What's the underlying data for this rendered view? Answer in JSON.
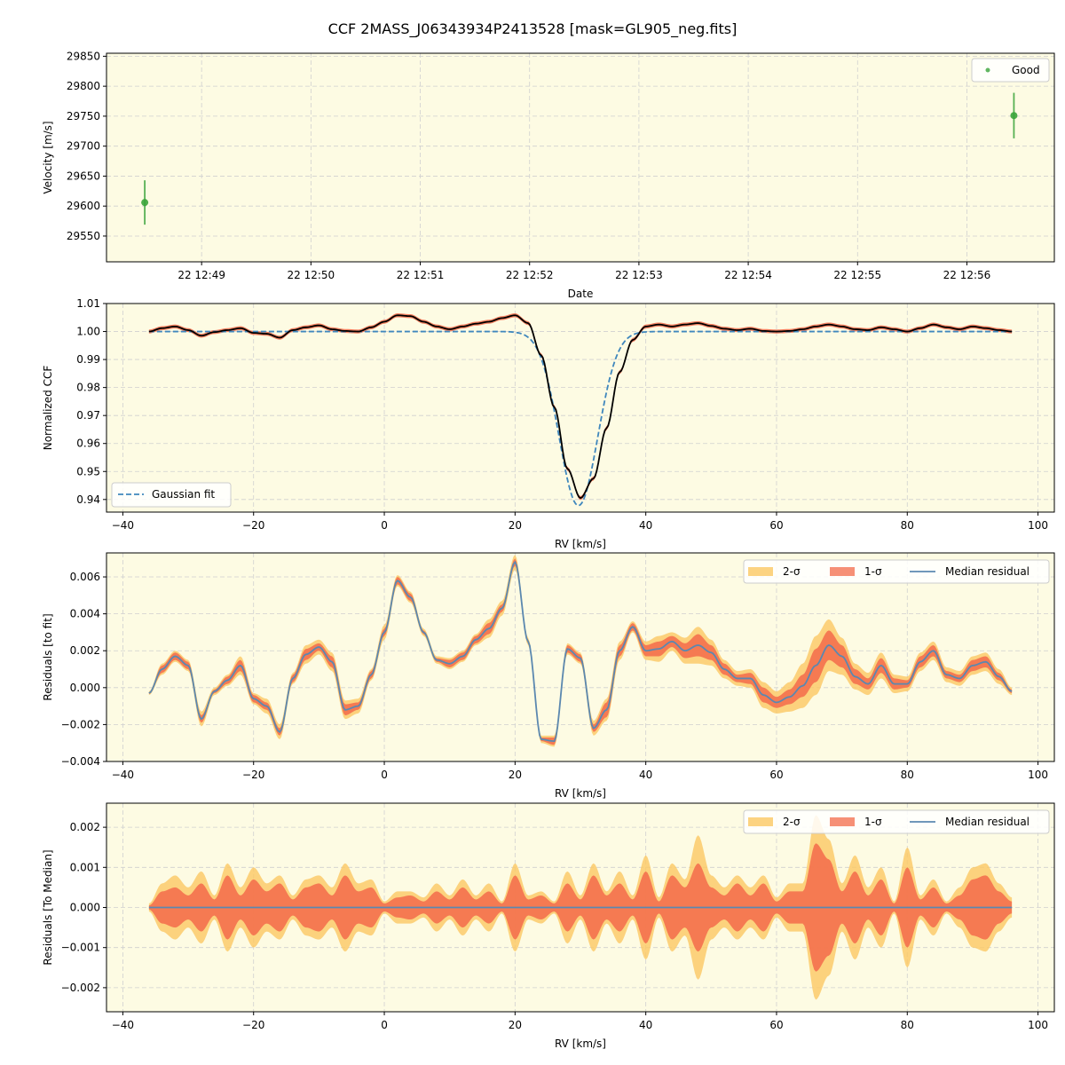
{
  "figure": {
    "title": "CCF 2MASS_J06343934P2413528 [mask=GL905_neg.fits]"
  },
  "style": {
    "plot_background": "#fdfbe3",
    "grid_color": "#d0d0d0",
    "good_color": "#3aa43a",
    "ccf_color": "#000000",
    "fit_color": "#3f87bd",
    "band2_color": "#fbc863",
    "band1_color": "#f36b4a",
    "median_color": "#5b88b0"
  },
  "chart_data": [
    {
      "type": "scatter",
      "xlabel": "Date",
      "ylabel": "Velocity [m/s]",
      "xtick_labels": [
        "22 12:49",
        "22 12:50",
        "22 12:51",
        "22 12:52",
        "22 12:53",
        "22 12:54",
        "22 12:55",
        "22 12:56"
      ],
      "xtick_minutes": [
        49,
        50,
        51,
        52,
        53,
        54,
        55,
        56
      ],
      "xlim_minutes": [
        48.13,
        56.8
      ],
      "yticks": [
        29550,
        29600,
        29650,
        29700,
        29750,
        29800,
        29850
      ],
      "ylim": [
        29507,
        29855
      ],
      "legend": "upper right",
      "series": [
        {
          "name": "Good",
          "x_minutes": [
            48.48,
            56.43
          ],
          "y": [
            29606,
            29751
          ],
          "yerr": [
            37,
            38
          ]
        }
      ]
    },
    {
      "type": "line",
      "xlabel": "RV [km/s]",
      "ylabel": "Normalized CCF",
      "xlim": [
        -42.5,
        102.5
      ],
      "ylim": [
        0.9355,
        1.01
      ],
      "xticks": [
        -40,
        -20,
        0,
        20,
        40,
        60,
        80,
        100
      ],
      "yticks": [
        0.94,
        0.95,
        0.96,
        0.97,
        0.98,
        0.99,
        1.0,
        1.01
      ],
      "ytick_labels": [
        "0.94",
        "0.95",
        "0.96",
        "0.97",
        "0.98",
        "0.99",
        "1.00",
        "1.01"
      ],
      "legend": "lower left",
      "series": [
        {
          "name": "Gaussian fit",
          "style": "dashed",
          "gaussian": {
            "center": 29.7,
            "depth": 0.0622,
            "sigma": 2.95,
            "base": 1.0
          }
        },
        {
          "name": "",
          "style": "solid",
          "x": [
            -36,
            -34,
            -32,
            -30,
            -28,
            -26,
            -24,
            -22,
            -20,
            -18,
            -16,
            -14,
            -12,
            -10,
            -8,
            -6,
            -4,
            -2,
            0,
            2,
            4,
            6,
            8,
            10,
            12,
            14,
            16,
            18,
            20,
            22,
            24,
            26,
            28,
            30,
            32,
            34,
            36,
            38,
            40,
            42,
            44,
            46,
            48,
            50,
            52,
            54,
            56,
            58,
            60,
            62,
            64,
            66,
            68,
            70,
            72,
            74,
            76,
            78,
            80,
            82,
            84,
            86,
            88,
            90,
            92,
            94,
            96
          ],
          "y": [
            1.0,
            1.0012,
            1.0018,
            1.0005,
            0.9985,
            0.9998,
            1.0005,
            1.0012,
            0.9995,
            0.9992,
            0.9978,
            1.0005,
            1.0015,
            1.0022,
            1.0008,
            1.0002,
            1.0,
            1.0015,
            1.0035,
            1.0058,
            1.0055,
            1.0035,
            1.0018,
            1.0008,
            1.0018,
            1.0028,
            1.0035,
            1.0048,
            1.0058,
            1.003,
            0.9915,
            0.973,
            0.951,
            0.9405,
            0.9475,
            0.9655,
            0.9855,
            0.997,
            1.0018,
            1.0025,
            1.0018,
            1.0025,
            1.003,
            1.002,
            1.001,
            1.0005,
            1.001,
            1.0002,
            1.0,
            1.0002,
            1.0008,
            1.0018,
            1.0025,
            1.0018,
            1.0008,
            1.0005,
            1.0015,
            1.0008,
            1.0,
            1.0012,
            1.0025,
            1.0015,
            1.0008,
            1.0018,
            1.0012,
            1.0005,
            1.0
          ]
        }
      ]
    },
    {
      "type": "area",
      "xlabel": "RV [km/s]",
      "ylabel": "Residuals [to fit]",
      "xlim": [
        -42.5,
        102.5
      ],
      "ylim": [
        -0.004,
        0.0073
      ],
      "xticks": [
        -40,
        -20,
        0,
        20,
        40,
        60,
        80,
        100
      ],
      "yticks": [
        -0.004,
        -0.002,
        0.0,
        0.002,
        0.004,
        0.006
      ],
      "ytick_labels": [
        "−0.004",
        "−0.002",
        "0.000",
        "0.002",
        "0.004",
        "0.006"
      ],
      "legend": "upper right",
      "legend_labels": [
        "2-σ",
        "1-σ",
        "Median residual"
      ],
      "x": [
        -36,
        -34,
        -32,
        -30,
        -28,
        -26,
        -24,
        -22,
        -20,
        -18,
        -16,
        -14,
        -12,
        -10,
        -8,
        -6,
        -4,
        -2,
        0,
        2,
        4,
        6,
        8,
        10,
        12,
        14,
        16,
        18,
        20,
        22,
        24,
        26,
        28,
        30,
        32,
        34,
        36,
        38,
        40,
        42,
        44,
        46,
        48,
        50,
        52,
        54,
        56,
        58,
        60,
        62,
        64,
        66,
        68,
        70,
        72,
        74,
        76,
        78,
        80,
        82,
        84,
        86,
        88,
        90,
        92,
        94,
        96
      ],
      "median": [
        -0.0003,
        0.001,
        0.0017,
        0.0012,
        -0.0017,
        -0.0002,
        0.0004,
        0.0012,
        -0.0006,
        -0.001,
        -0.0024,
        0.0005,
        0.0018,
        0.0022,
        0.0014,
        -0.0012,
        -0.001,
        0.0007,
        0.003,
        0.0058,
        0.0049,
        0.003,
        0.0015,
        0.0013,
        0.0017,
        0.0026,
        0.0032,
        0.0043,
        0.0068,
        0.0025,
        -0.0028,
        -0.0029,
        0.0021,
        0.0016,
        -0.0022,
        -0.0012,
        0.002,
        0.0033,
        0.002,
        0.0021,
        0.0025,
        0.002,
        0.0023,
        0.0019,
        0.001,
        0.0005,
        0.0005,
        -0.0004,
        -0.0008,
        -0.0005,
        0.0001,
        0.0012,
        0.0023,
        0.0017,
        0.0006,
        0.0002,
        0.0012,
        0.0002,
        0.0002,
        0.0014,
        0.002,
        0.0007,
        0.0005,
        0.0012,
        0.0014,
        0.0006,
        -0.0002
      ],
      "sigma1": [
        5e-05,
        0.0002,
        0.0002,
        0.0002,
        0.0002,
        0.0001,
        0.0002,
        0.0003,
        0.0002,
        0.0002,
        0.0002,
        0.0002,
        0.0003,
        0.0002,
        0.0003,
        0.0003,
        0.0002,
        0.0002,
        0.0002,
        0.0002,
        0.0002,
        0.0001,
        0.0001,
        0.0002,
        0.0002,
        0.0002,
        0.0003,
        0.0002,
        0.0002,
        0.0001,
        0.0001,
        0.0002,
        0.0002,
        0.0002,
        0.0002,
        0.0004,
        0.0003,
        0.0002,
        0.0003,
        0.0004,
        0.0003,
        0.0004,
        0.0006,
        0.0004,
        0.0003,
        0.0002,
        0.0003,
        0.0004,
        0.0003,
        0.0004,
        0.0006,
        0.0009,
        0.0008,
        0.0006,
        0.0004,
        0.0003,
        0.0004,
        0.0003,
        0.0002,
        0.0003,
        0.0003,
        0.0002,
        0.0002,
        0.0003,
        0.0003,
        0.0002,
        0.0001
      ],
      "sigma2": [
        0.0001,
        0.0003,
        0.0003,
        0.0003,
        0.0004,
        0.0002,
        0.0003,
        0.0005,
        0.0003,
        0.0004,
        0.0004,
        0.0003,
        0.0005,
        0.0004,
        0.0005,
        0.0005,
        0.0004,
        0.0003,
        0.0004,
        0.0003,
        0.0003,
        0.0002,
        0.0002,
        0.0003,
        0.0003,
        0.0003,
        0.0005,
        0.0004,
        0.0004,
        0.0002,
        0.0002,
        0.0003,
        0.0003,
        0.0003,
        0.0004,
        0.0006,
        0.0005,
        0.0003,
        0.0005,
        0.0007,
        0.0005,
        0.0007,
        0.001,
        0.0007,
        0.0005,
        0.0004,
        0.0005,
        0.0007,
        0.0006,
        0.0008,
        0.0012,
        0.0016,
        0.0014,
        0.001,
        0.0007,
        0.0006,
        0.0007,
        0.0005,
        0.0004,
        0.0005,
        0.0005,
        0.0004,
        0.0004,
        0.0005,
        0.0005,
        0.0004,
        0.0002
      ]
    },
    {
      "type": "area",
      "xlabel": "RV [km/s]",
      "ylabel": "Residuals [To Median]",
      "xlim": [
        -42.5,
        102.5
      ],
      "ylim": [
        -0.0026,
        0.0026
      ],
      "xticks": [
        -40,
        -20,
        0,
        20,
        40,
        60,
        80,
        100
      ],
      "yticks": [
        -0.002,
        -0.001,
        0.0,
        0.001,
        0.002
      ],
      "ytick_labels": [
        "−0.002",
        "−0.001",
        "0.000",
        "0.001",
        "0.002"
      ],
      "legend": "upper right",
      "legend_labels": [
        "2-σ",
        "1-σ",
        "Median residual"
      ],
      "x": [
        -36,
        -34,
        -32,
        -30,
        -28,
        -26,
        -24,
        -22,
        -20,
        -18,
        -16,
        -14,
        -12,
        -10,
        -8,
        -6,
        -4,
        -2,
        0,
        2,
        4,
        6,
        8,
        10,
        12,
        14,
        16,
        18,
        20,
        22,
        24,
        26,
        28,
        30,
        32,
        34,
        36,
        38,
        40,
        42,
        44,
        46,
        48,
        50,
        52,
        54,
        56,
        58,
        60,
        62,
        64,
        66,
        68,
        70,
        72,
        74,
        76,
        78,
        80,
        82,
        84,
        86,
        88,
        90,
        92,
        94,
        96
      ],
      "sigma1": [
        5e-05,
        0.0004,
        0.0005,
        0.0003,
        0.0006,
        0.0002,
        0.0008,
        0.0003,
        0.0007,
        0.0004,
        0.0006,
        0.0002,
        0.0005,
        0.0006,
        0.0003,
        0.0008,
        0.0004,
        0.0005,
        0.0001,
        0.00025,
        0.0003,
        0.00015,
        0.0004,
        0.0002,
        0.0005,
        0.0002,
        0.0004,
        0.0001,
        0.0008,
        0.0002,
        0.0003,
        0.0001,
        0.0006,
        0.0002,
        0.0008,
        0.0003,
        0.0006,
        0.0002,
        0.0009,
        0.00015,
        0.0008,
        0.0005,
        0.0011,
        0.0005,
        0.0003,
        0.0006,
        0.0003,
        0.0006,
        0.00015,
        0.0004,
        0.0004,
        0.0016,
        0.0012,
        0.0004,
        0.0009,
        0.0003,
        0.0007,
        0.0001,
        0.001,
        0.0002,
        0.0005,
        0.0001,
        0.0003,
        0.0007,
        0.0008,
        0.0004,
        0.00015
      ],
      "sigma2": [
        0.0001,
        0.0006,
        0.0008,
        0.0005,
        0.0009,
        0.0003,
        0.0011,
        0.0005,
        0.001,
        0.0006,
        0.0008,
        0.0003,
        0.0007,
        0.0008,
        0.0005,
        0.0011,
        0.0006,
        0.0007,
        0.00015,
        0.0004,
        0.0004,
        0.00025,
        0.0006,
        0.0003,
        0.0007,
        0.0003,
        0.0006,
        0.00015,
        0.0011,
        0.0003,
        0.0004,
        0.00015,
        0.0009,
        0.0003,
        0.0011,
        0.0004,
        0.0009,
        0.0003,
        0.0013,
        0.00025,
        0.0011,
        0.0007,
        0.0018,
        0.0008,
        0.0005,
        0.0008,
        0.0005,
        0.0008,
        0.00025,
        0.0006,
        0.0006,
        0.0023,
        0.0017,
        0.0006,
        0.0013,
        0.0005,
        0.001,
        0.00015,
        0.0015,
        0.0003,
        0.0007,
        0.00015,
        0.0005,
        0.001,
        0.0011,
        0.0006,
        0.00025
      ]
    }
  ]
}
